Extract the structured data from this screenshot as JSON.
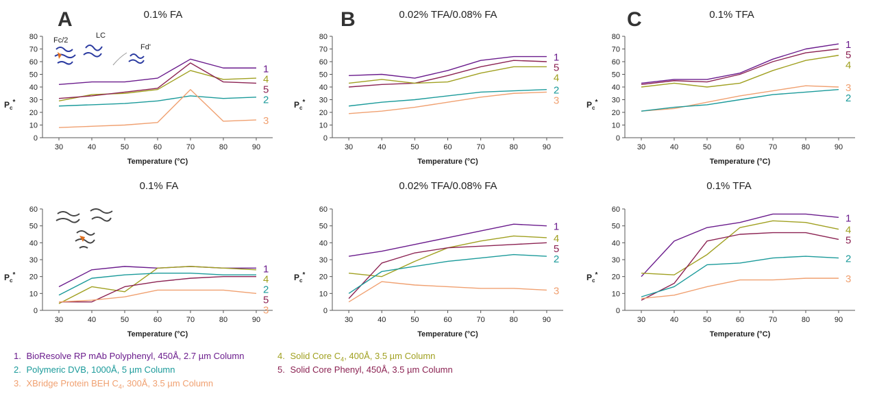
{
  "figure": {
    "panel_letters": [
      "A",
      "B",
      "C"
    ],
    "xlabel": "Temperature (°C)",
    "ylabel_main": "P",
    "ylabel_sub": "c",
    "ylabel_sup": "*",
    "structure_labels": [
      "Fc/2",
      "LC",
      "Fd'"
    ]
  },
  "series_meta": [
    {
      "id": "1",
      "name": "BioResolve RP mAb Polyphenyl, 450Å, 2.7 µm Column",
      "color": "#6a1b8c"
    },
    {
      "id": "2",
      "name": "Polymeric DVB, 1000Å, 5 µm Column",
      "color": "#1a9a9a"
    },
    {
      "id": "3",
      "name": "XBridge Protein BEH C4, 300Å, 3.5 µm Column",
      "color": "#f0a070"
    },
    {
      "id": "4",
      "name": "Solid Core C4, 400Å, 3.5 µm Column",
      "color": "#a0a020"
    },
    {
      "id": "5",
      "name": "Solid Core Phenyl, 450Å, 3.5 µm Column",
      "color": "#8b2252"
    }
  ],
  "legend": {
    "l1_num": "1.",
    "l1_text_a": "BioResolve RP mAb Polyphenyl, 450Å, 2.7 µm Column",
    "l2_num": "2.",
    "l2_text_a": "Polymeric DVB, 1000Å, 5 µm Column",
    "l3_num": "3.",
    "l3_text_a": "XBridge Protein BEH C",
    "l3_sub": "4",
    "l3_text_b": ", 300Å, 3.5 µm Column",
    "l4_num": "4.",
    "l4_text_a": "Solid Core C",
    "l4_sub": "4",
    "l4_text_b": ", 400Å, 3.5 µm Column",
    "l5_num": "5.",
    "l5_text_a": "Solid Core Phenyl, 450Å, 3.5 µm Column"
  },
  "chart_data": [
    {
      "type": "line",
      "panel": "A",
      "title": "0.1% FA",
      "xlabel": "Temperature (°C)",
      "ylabel": "Pc*",
      "x": [
        30,
        40,
        50,
        60,
        70,
        80,
        90
      ],
      "ylim": [
        0,
        80
      ],
      "yticks": [
        0,
        10,
        20,
        30,
        40,
        50,
        60,
        70,
        80
      ],
      "series": [
        {
          "name": "1",
          "values": [
            42,
            44,
            44,
            47,
            62,
            55,
            55
          ]
        },
        {
          "name": "4",
          "values": [
            29,
            34,
            35,
            38,
            53,
            46,
            47
          ]
        },
        {
          "name": "5",
          "values": [
            31,
            33,
            36,
            39,
            59,
            44,
            43
          ]
        },
        {
          "name": "2",
          "values": [
            25,
            26,
            27,
            29,
            33,
            31,
            32
          ]
        },
        {
          "name": "3",
          "values": [
            8,
            9,
            10,
            12,
            38,
            13,
            14
          ]
        }
      ],
      "end_labels": [
        "1",
        "4",
        "5",
        "2",
        "3"
      ]
    },
    {
      "type": "line",
      "panel": "B",
      "title": "0.02% TFA/0.08% FA",
      "xlabel": "Temperature (°C)",
      "ylabel": "Pc*",
      "x": [
        30,
        40,
        50,
        60,
        70,
        80,
        90
      ],
      "ylim": [
        0,
        80
      ],
      "yticks": [
        0,
        10,
        20,
        30,
        40,
        50,
        60,
        70,
        80
      ],
      "series": [
        {
          "name": "1",
          "values": [
            49,
            50,
            47,
            53,
            61,
            64,
            64
          ]
        },
        {
          "name": "5",
          "values": [
            40,
            42,
            43,
            49,
            56,
            61,
            60
          ]
        },
        {
          "name": "4",
          "values": [
            43,
            46,
            43,
            44,
            51,
            56,
            56
          ]
        },
        {
          "name": "2",
          "values": [
            25,
            28,
            30,
            33,
            36,
            37,
            38
          ]
        },
        {
          "name": "3",
          "values": [
            19,
            21,
            24,
            28,
            32,
            35,
            36
          ]
        }
      ],
      "end_labels": [
        "1",
        "5",
        "4",
        "2",
        "3"
      ]
    },
    {
      "type": "line",
      "panel": "C",
      "title": "0.1% TFA",
      "xlabel": "Temperature (°C)",
      "ylabel": "Pc*",
      "x": [
        30,
        40,
        50,
        60,
        70,
        80,
        90
      ],
      "ylim": [
        0,
        80
      ],
      "yticks": [
        0,
        10,
        20,
        30,
        40,
        50,
        60,
        70,
        80
      ],
      "series": [
        {
          "name": "1",
          "values": [
            43,
            46,
            46,
            51,
            62,
            70,
            74
          ]
        },
        {
          "name": "5",
          "values": [
            42,
            45,
            44,
            50,
            60,
            67,
            70
          ]
        },
        {
          "name": "4",
          "values": [
            40,
            43,
            40,
            43,
            53,
            61,
            65
          ]
        },
        {
          "name": "3",
          "values": [
            21,
            23,
            28,
            33,
            37,
            41,
            40
          ]
        },
        {
          "name": "2",
          "values": [
            21,
            24,
            26,
            30,
            34,
            36,
            38
          ]
        }
      ],
      "end_labels": [
        "1",
        "5",
        "4",
        "3",
        "2"
      ]
    },
    {
      "type": "line",
      "panel": "A-bottom",
      "title": "0.1% FA",
      "xlabel": "Temperature (°C)",
      "ylabel": "Pc*",
      "x": [
        30,
        40,
        50,
        60,
        70,
        80,
        90
      ],
      "ylim": [
        0,
        60
      ],
      "yticks": [
        0,
        10,
        20,
        30,
        40,
        50,
        60
      ],
      "series": [
        {
          "name": "1",
          "values": [
            14,
            24,
            26,
            25,
            26,
            25,
            25
          ]
        },
        {
          "name": "4",
          "values": [
            4,
            14,
            11,
            25,
            26,
            25,
            24
          ]
        },
        {
          "name": "2",
          "values": [
            9,
            19,
            21,
            22,
            22,
            21,
            21
          ]
        },
        {
          "name": "5",
          "values": [
            5,
            5,
            14,
            17,
            19,
            20,
            20
          ]
        },
        {
          "name": "3",
          "values": [
            5,
            6,
            8,
            12,
            12,
            12,
            10
          ]
        }
      ],
      "end_labels": [
        "1",
        "4",
        "2",
        "5",
        "3"
      ]
    },
    {
      "type": "line",
      "panel": "B-bottom",
      "title": "0.02% TFA/0.08% FA",
      "xlabel": "Temperature (°C)",
      "ylabel": "Pc*",
      "x": [
        30,
        40,
        50,
        60,
        70,
        80,
        90
      ],
      "ylim": [
        0,
        60
      ],
      "yticks": [
        0,
        10,
        20,
        30,
        40,
        50,
        60
      ],
      "series": [
        {
          "name": "1",
          "values": [
            32,
            35,
            39,
            43,
            47,
            51,
            50
          ]
        },
        {
          "name": "4",
          "values": [
            22,
            20,
            29,
            37,
            41,
            44,
            43
          ]
        },
        {
          "name": "5",
          "values": [
            7,
            28,
            34,
            37,
            38,
            39,
            40
          ]
        },
        {
          "name": "2",
          "values": [
            10,
            23,
            26,
            29,
            31,
            33,
            32
          ]
        },
        {
          "name": "3",
          "values": [
            5,
            17,
            15,
            14,
            13,
            13,
            12
          ]
        }
      ],
      "end_labels": [
        "1",
        "4",
        "5",
        "2",
        "3"
      ]
    },
    {
      "type": "line",
      "panel": "C-bottom",
      "title": "0.1% TFA",
      "xlabel": "Temperature (°C)",
      "ylabel": "Pc*",
      "x": [
        30,
        40,
        50,
        60,
        70,
        80,
        90
      ],
      "ylim": [
        0,
        60
      ],
      "yticks": [
        0,
        10,
        20,
        30,
        40,
        50,
        60
      ],
      "series": [
        {
          "name": "1",
          "values": [
            20,
            41,
            49,
            52,
            57,
            57,
            55
          ]
        },
        {
          "name": "4",
          "values": [
            22,
            21,
            33,
            49,
            53,
            52,
            48
          ]
        },
        {
          "name": "5",
          "values": [
            6,
            16,
            41,
            45,
            46,
            46,
            42
          ]
        },
        {
          "name": "2",
          "values": [
            8,
            14,
            27,
            28,
            31,
            32,
            31
          ]
        },
        {
          "name": "3",
          "values": [
            7,
            9,
            14,
            18,
            18,
            19,
            19
          ]
        }
      ],
      "end_labels": [
        "1",
        "4",
        "5",
        "2",
        "3"
      ]
    }
  ]
}
